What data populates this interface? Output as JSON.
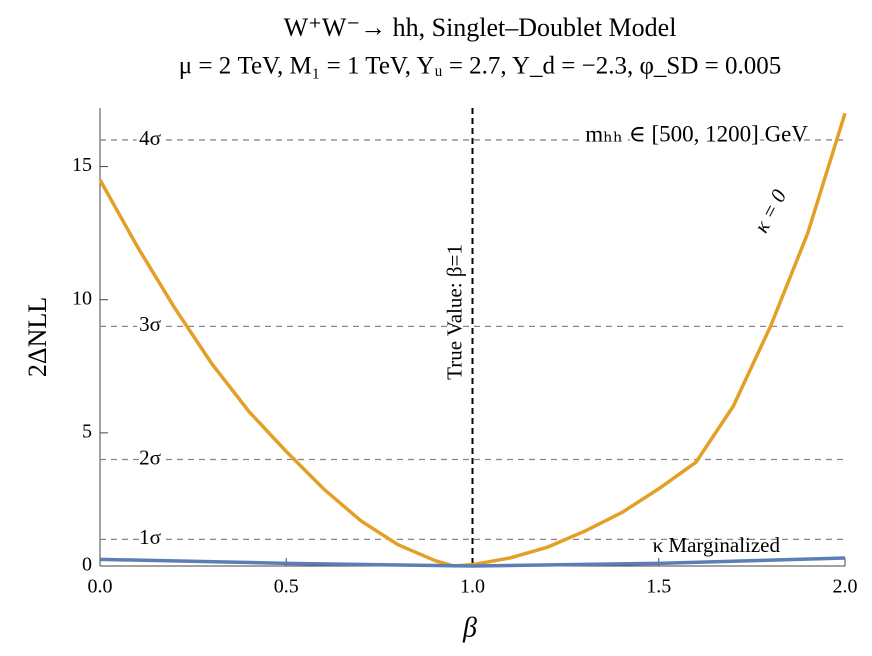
{
  "chart_data": {
    "type": "line",
    "title": "W⁺W⁻→ hh, Singlet–Doublet Model",
    "subtitle": "μ = 2 TeV, M₁ = 1 TeV, Yᵤ = 2.7, Y_d = −2.3, φ_SD = 0.005",
    "x_label": "β",
    "y_label": "2ΔNLL",
    "annotation": "mₕₕ ∈ [500, 1200] GeV",
    "xlim": [
      0,
      2
    ],
    "ylim": [
      0,
      17.2
    ],
    "xticks": [
      {
        "value": 0,
        "label": "0.0"
      },
      0.5,
      {
        "value": 1,
        "label": "1.0"
      },
      1.5,
      {
        "value": 2,
        "label": "2.0"
      }
    ],
    "yticks": [
      0,
      5,
      10,
      15
    ],
    "sigma_lines": [
      {
        "value": 1,
        "label": "1σ"
      },
      {
        "value": 4,
        "label": "2σ"
      },
      {
        "value": 9,
        "label": "3σ"
      },
      {
        "value": 16,
        "label": "4σ"
      }
    ],
    "vline": {
      "value": 1,
      "label": "True Value: β=1"
    },
    "series": [
      {
        "name": "κ = 0",
        "color": "#e3a027",
        "x": [
          0,
          0.1,
          0.2,
          0.3,
          0.4,
          0.5,
          0.6,
          0.7,
          0.8,
          0.9,
          0.95,
          1.0,
          1.1,
          1.2,
          1.3,
          1.4,
          1.5,
          1.6,
          1.7,
          1.8,
          1.9,
          2.0
        ],
        "values": [
          14.5,
          12.0,
          9.7,
          7.6,
          5.8,
          4.3,
          2.9,
          1.7,
          0.8,
          0.2,
          0.0,
          0.05,
          0.3,
          0.7,
          1.3,
          2.0,
          2.9,
          3.9,
          6.0,
          9.0,
          12.5,
          17.0
        ]
      },
      {
        "name": "κ Marginalized",
        "color": "#5b7fb5",
        "x": [
          0,
          0.5,
          1.0,
          1.5,
          2.0
        ],
        "values": [
          0.25,
          0.1,
          0.0,
          0.1,
          0.3
        ]
      }
    ]
  }
}
